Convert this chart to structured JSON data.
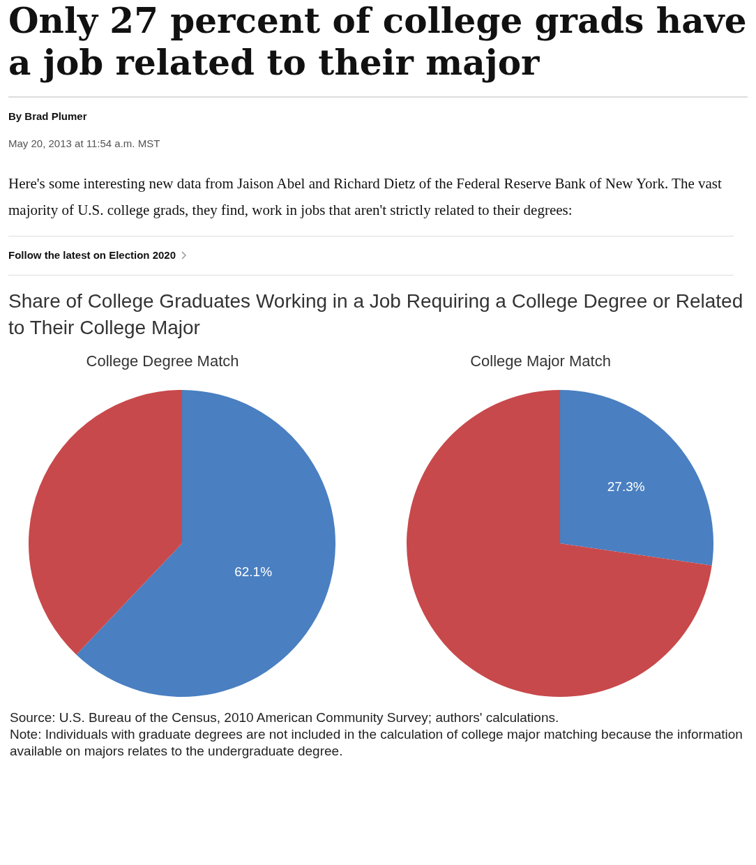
{
  "chart_data": [
    {
      "type": "pie",
      "title": "College Degree Match",
      "annotations": [
        "Only 27 percent of college grads have a job related to their major",
        "By Brad Plumer",
        "May 20, 2013 at 11:54 a.m. MST",
        "Here's some interesting new data from Jaison Abel and Richard Dietz of the Federal Reserve Bank of New York. The vast majority of U.S. college grads, they find, work in jobs that aren't strictly related to their degrees:",
        "Follow the latest on Election 2020",
        "Share of College Graduates Working in a Job Requiring a College Degree or Related to Their College Major"
      ],
      "categories": [
        null,
        null
      ],
      "values": [
        62.1,
        37.9
      ],
      "colors": [
        "#4a7fc1",
        "#c8494b"
      ],
      "value_labels": [
        "62.1%",
        null
      ]
    },
    {
      "type": "pie",
      "title": "College Major Match",
      "annotations": [
        "Source: U.S. Bureau of the Census, 2010 American Community Survey; authors' calculations.",
        "Note: Individuals with graduate degrees are not included in the calculation of college major matching because the information available on majors relates to the undergraduate degree."
      ],
      "categories": [
        null,
        null
      ],
      "values": [
        27.3,
        72.7
      ],
      "colors": [
        "#4a7fc1",
        "#c8494b"
      ],
      "value_labels": [
        "27.3%",
        null
      ]
    }
  ]
}
